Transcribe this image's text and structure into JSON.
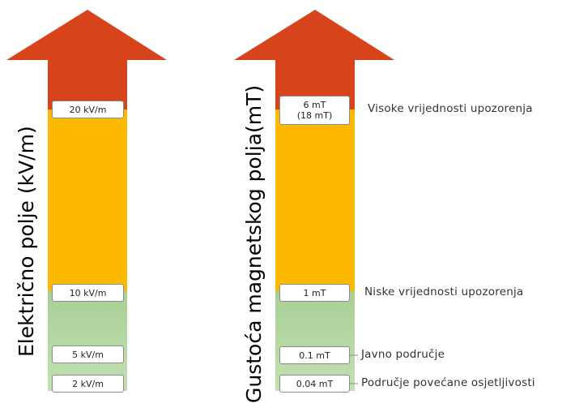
{
  "colors": {
    "red": "#d7431b",
    "amber": "#fdb900",
    "green_top": "#a8cf95",
    "green_bottom": "#c3e0b2",
    "marker_border": "#8c8c8c"
  },
  "left_column": {
    "title": "Električno polje (kV/m)",
    "markers": [
      "20 kV/m",
      "10 kV/m",
      "5 kV/m",
      "2 kV/m"
    ]
  },
  "right_column": {
    "title": "Gustoća magnetskog polja(mT)",
    "markers": [
      {
        "line1": "6 mT",
        "line2": "(18 mT)"
      },
      {
        "line1": "1 mT"
      },
      {
        "line1": "0.1 mT"
      },
      {
        "line1": "0.04 mT"
      }
    ]
  },
  "zone_labels": [
    "Visoke vrijednosti upozorenja",
    "Niske vrijednosti upozorenja",
    "Javno područje",
    "Područje povećane osjetljivosti"
  ]
}
